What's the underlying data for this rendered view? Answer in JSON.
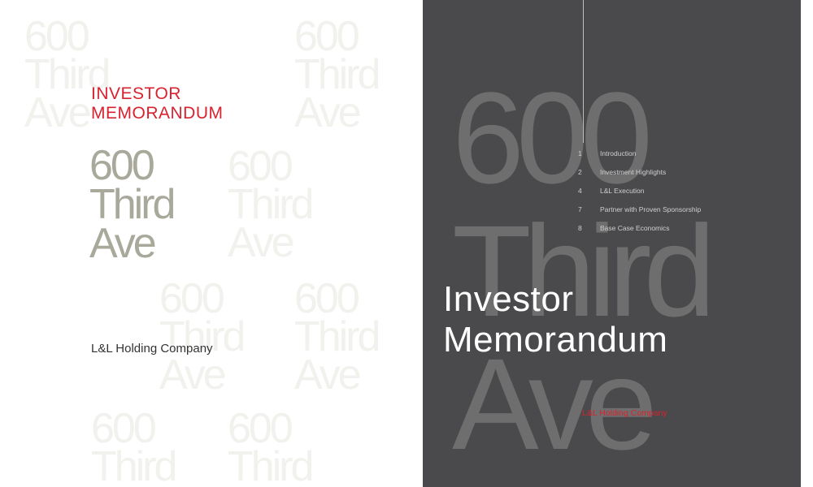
{
  "cover": {
    "kicker": [
      "INVESTOR",
      "MEMORANDUM"
    ],
    "title": [
      "600",
      "Third",
      "Ave"
    ],
    "company": "L&L Holding Company",
    "watermark": [
      "600",
      "Third",
      "Ave"
    ]
  },
  "contents": {
    "background_title": [
      "600",
      "Third",
      "Ave"
    ],
    "items": [
      {
        "num": "1",
        "label": "Introduction"
      },
      {
        "num": "2",
        "label": "Investment Highlights"
      },
      {
        "num": "4",
        "label": "L&L Execution"
      },
      {
        "num": "7",
        "label": "Partner with Proven Sponsorship"
      },
      {
        "num": "8",
        "label": "Base Case Economics"
      }
    ],
    "title": [
      "Investor",
      "Memorandum"
    ],
    "company": "L&L Holding Company"
  },
  "colors": {
    "accent_red": "#d7232f",
    "title_gray": "#a8a89b",
    "dark_panel": "#4a4a4c"
  }
}
